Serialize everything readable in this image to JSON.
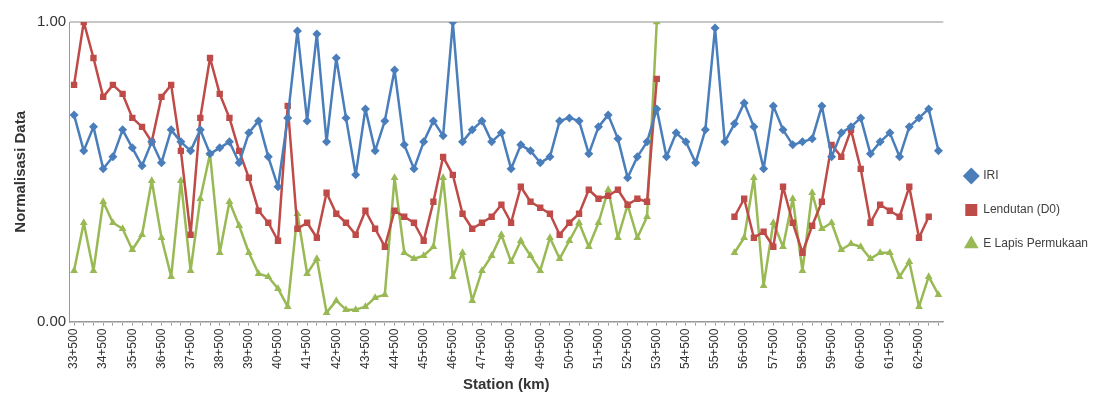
{
  "chart_data": {
    "type": "line",
    "xlabel": "Station (km)",
    "ylabel": "Normalisasi Data",
    "categories": [
      "33+500",
      null,
      null,
      "34+500",
      null,
      null,
      "35+500",
      null,
      null,
      "36+500",
      null,
      null,
      "37+500",
      null,
      null,
      "38+500",
      null,
      null,
      "39+500",
      null,
      null,
      "40+500",
      null,
      null,
      "41+500",
      null,
      null,
      "42+500",
      null,
      null,
      "43+500",
      null,
      null,
      "44+500",
      null,
      null,
      "45+500",
      null,
      null,
      "46+500",
      null,
      null,
      "47+500",
      null,
      null,
      "48+500",
      null,
      null,
      "49+500",
      null,
      null,
      "50+500",
      null,
      null,
      "51+500",
      null,
      null,
      "52+500",
      null,
      null,
      "53+500",
      null,
      null,
      "54+500",
      null,
      null,
      "55+500",
      null,
      null,
      "56+500",
      null,
      null,
      "57+500",
      null,
      null,
      "58+500",
      null,
      null,
      "59+500",
      null,
      null,
      "60+500",
      null,
      null,
      "61+500",
      null,
      null,
      "62+500",
      null,
      null
    ],
    "ylim": [
      0,
      1
    ],
    "yticks": [
      {
        "value": 0,
        "label": "0.00"
      },
      {
        "value": 1,
        "label": "1.00"
      }
    ],
    "grid": "y",
    "legend": "right",
    "series": [
      {
        "name": "IRI",
        "color": "#4a7ebb",
        "marker": "diamond",
        "values": [
          0.69,
          0.57,
          0.65,
          0.51,
          0.55,
          0.64,
          0.58,
          0.52,
          0.6,
          0.53,
          0.64,
          0.6,
          0.57,
          0.64,
          0.56,
          0.58,
          0.6,
          0.53,
          0.63,
          0.67,
          0.55,
          0.45,
          0.68,
          0.97,
          0.67,
          0.96,
          0.6,
          0.88,
          0.68,
          0.49,
          0.71,
          0.57,
          0.67,
          0.84,
          0.59,
          0.51,
          0.6,
          0.67,
          0.62,
          1.0,
          0.6,
          0.64,
          0.67,
          0.6,
          0.63,
          0.51,
          0.59,
          0.57,
          0.53,
          0.55,
          0.67,
          0.68,
          0.67,
          0.56,
          0.65,
          0.69,
          0.61,
          0.48,
          0.55,
          0.6,
          0.71,
          0.55,
          0.63,
          0.6,
          0.53,
          0.64,
          0.98,
          0.6,
          0.66,
          0.73,
          0.65,
          0.51,
          0.72,
          0.64,
          0.59,
          0.6,
          0.61,
          0.72,
          0.55,
          0.63,
          0.65,
          0.68,
          0.56,
          0.6,
          0.63,
          0.55,
          0.65,
          0.68,
          0.71,
          0.57
        ]
      },
      {
        "name": "Lendutan (D0)",
        "color": "#be4b48",
        "marker": "square",
        "values": [
          0.79,
          1.0,
          0.88,
          0.75,
          0.79,
          0.76,
          0.68,
          0.65,
          0.6,
          0.75,
          0.79,
          0.57,
          0.29,
          0.68,
          0.88,
          0.76,
          0.68,
          0.57,
          0.48,
          0.37,
          0.33,
          0.27,
          0.72,
          0.31,
          0.33,
          0.28,
          0.43,
          0.36,
          0.33,
          0.29,
          0.37,
          0.31,
          0.25,
          0.37,
          0.35,
          0.33,
          0.27,
          0.4,
          0.55,
          0.49,
          0.36,
          0.31,
          0.33,
          0.35,
          0.39,
          0.33,
          0.45,
          0.4,
          0.38,
          0.36,
          0.29,
          0.33,
          0.36,
          0.44,
          0.41,
          0.42,
          0.44,
          0.39,
          0.41,
          0.4,
          0.81,
          null,
          null,
          null,
          null,
          null,
          null,
          null,
          0.35,
          0.41,
          0.28,
          0.3,
          0.25,
          0.45,
          0.33,
          0.23,
          0.32,
          0.4,
          0.59,
          0.55,
          0.64,
          0.51,
          0.33,
          0.39,
          0.37,
          0.35,
          0.45,
          0.28,
          0.35,
          null
        ]
      },
      {
        "name": "E Lapis Permukaan",
        "color": "#98b954",
        "marker": "triangle",
        "values": [
          0.17,
          0.33,
          0.17,
          0.4,
          0.33,
          0.31,
          0.24,
          0.29,
          0.47,
          0.28,
          0.15,
          0.47,
          0.17,
          0.41,
          0.56,
          0.23,
          0.4,
          0.32,
          0.23,
          0.16,
          0.15,
          0.11,
          0.05,
          0.36,
          0.16,
          0.21,
          0.03,
          0.07,
          0.04,
          0.04,
          0.05,
          0.08,
          0.09,
          0.48,
          0.23,
          0.21,
          0.22,
          0.25,
          0.48,
          0.15,
          0.23,
          0.07,
          0.17,
          0.22,
          0.29,
          0.2,
          0.27,
          0.22,
          0.17,
          0.28,
          0.21,
          0.27,
          0.33,
          0.25,
          0.33,
          0.44,
          0.28,
          0.39,
          0.28,
          0.35,
          1.0,
          null,
          null,
          null,
          null,
          null,
          null,
          null,
          0.23,
          0.28,
          0.48,
          0.12,
          0.33,
          0.25,
          0.41,
          0.17,
          0.43,
          0.31,
          0.33,
          0.24,
          0.26,
          0.25,
          0.21,
          0.23,
          0.23,
          0.15,
          0.2,
          0.05,
          0.15,
          0.09
        ]
      }
    ]
  }
}
